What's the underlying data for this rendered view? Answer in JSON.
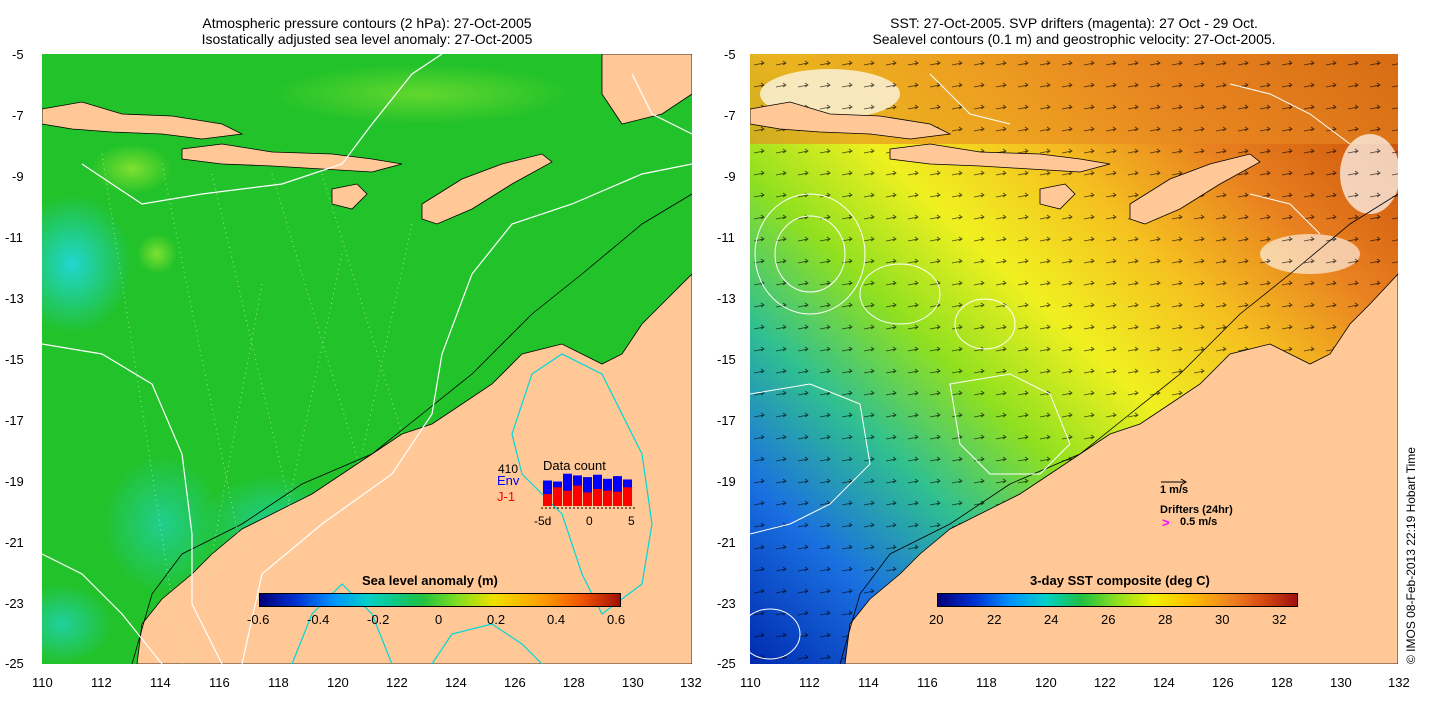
{
  "left_panel": {
    "title_line1": "Atmospheric pressure contours (2 hPa): 27-Oct-2005",
    "title_line2": "Isostatically adjusted sea level anomaly: 27-Oct-2005",
    "y_ticks": [
      "-5",
      "-7",
      "-9",
      "-11",
      "-13",
      "-15",
      "-17",
      "-19",
      "-21",
      "-23",
      "-25"
    ],
    "x_ticks": [
      "110",
      "112",
      "114",
      "116",
      "118",
      "120",
      "122",
      "124",
      "126",
      "128",
      "130",
      "132"
    ],
    "colorbar": {
      "title": "Sea level anomaly (m)",
      "labels": [
        "-0.6",
        "-0.4",
        "-0.2",
        "0",
        "0.2",
        "0.4",
        "0.6"
      ],
      "range": [
        -0.6,
        0.6
      ]
    },
    "data_count": {
      "title": "Data count",
      "max_label": "410",
      "series1": "Env",
      "series2": "J-1",
      "x_labels": [
        "-5d",
        "0",
        "5"
      ],
      "env": [
        0.75,
        0.72,
        0.95,
        0.9,
        0.85,
        0.92,
        0.8,
        0.88,
        0.78
      ],
      "j1": [
        0.35,
        0.55,
        0.45,
        0.6,
        0.4,
        0.5,
        0.45,
        0.42,
        0.55
      ],
      "colors": {
        "env": "#0000ff",
        "j1": "#ff0000"
      }
    }
  },
  "right_panel": {
    "title_line1": "SST: 27-Oct-2005. SVP drifters (magenta): 27 Oct - 29 Oct.",
    "title_line2": "Sealevel contours (0.1 m) and geostrophic velocity: 27-Oct-2005.",
    "y_ticks": [
      "-5",
      "-7",
      "-9",
      "-11",
      "-13",
      "-15",
      "-17",
      "-19",
      "-21",
      "-23",
      "-25"
    ],
    "x_ticks": [
      "110",
      "112",
      "114",
      "116",
      "118",
      "120",
      "122",
      "124",
      "126",
      "128",
      "130",
      "132"
    ],
    "colorbar": {
      "title": "3-day SST composite (deg C)",
      "labels": [
        "20",
        "22",
        "24",
        "26",
        "28",
        "30",
        "32"
      ],
      "range": [
        20,
        32.6
      ]
    },
    "velocity_legend": "1 m/s",
    "drifters_legend": "Drifters (24hr)",
    "drifters_speed": "0.5 m/s",
    "drifter_symbol": ">"
  },
  "copyright": "© IMOS 08-Feb-2013 22:19 Hobart Time",
  "colors": {
    "land": "#ffc896",
    "ocean_green": "#22c82a",
    "accent_cyan": "#00d8d8"
  }
}
